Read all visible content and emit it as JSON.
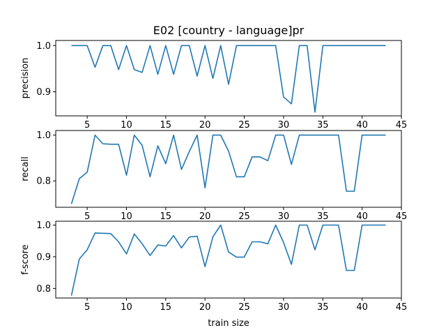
{
  "chart_data": {
    "type": "line",
    "title": "E02 [country - language]pr",
    "xlabel": "train size",
    "line_color": "#1f77b4",
    "grid": false,
    "x": [
      3,
      4,
      5,
      6,
      7,
      8,
      9,
      10,
      11,
      12,
      13,
      14,
      15,
      16,
      17,
      18,
      19,
      20,
      21,
      22,
      23,
      24,
      25,
      26,
      27,
      28,
      29,
      30,
      31,
      32,
      33,
      34,
      35,
      36,
      37,
      38,
      39,
      40,
      41,
      42,
      43
    ],
    "xlim": [
      1,
      45
    ],
    "xticks": [
      5,
      10,
      15,
      20,
      25,
      30,
      35,
      40,
      45
    ],
    "panels": [
      {
        "ylabel": "precision",
        "ylim": [
          0.848,
          1.011
        ],
        "yticks": [
          0.9,
          1.0
        ],
        "ytick_labels": [
          "0.9",
          "1.0"
        ],
        "values": [
          1.0,
          1.0,
          1.0,
          0.953,
          1.0,
          1.0,
          0.948,
          1.0,
          0.948,
          0.942,
          1.0,
          0.938,
          1.0,
          0.938,
          1.0,
          1.0,
          0.934,
          1.0,
          0.929,
          1.0,
          0.916,
          1.0,
          1.0,
          1.0,
          1.0,
          1.0,
          1.0,
          0.889,
          0.874,
          1.0,
          1.0,
          0.856,
          1.0,
          1.0,
          1.0,
          1.0,
          1.0,
          1.0,
          1.0,
          1.0,
          1.0
        ]
      },
      {
        "ylabel": "recall",
        "ylim": [
          0.685,
          1.02
        ],
        "yticks": [
          0.8,
          1.0
        ],
        "ytick_labels": [
          "0.8",
          "1.0"
        ],
        "values": [
          0.7,
          0.81,
          0.838,
          1.0,
          0.962,
          0.96,
          0.96,
          0.825,
          1.0,
          0.955,
          0.818,
          0.953,
          0.875,
          1.0,
          0.85,
          0.928,
          1.0,
          0.77,
          1.0,
          1.0,
          0.93,
          0.818,
          0.818,
          0.905,
          0.905,
          0.888,
          1.0,
          1.0,
          0.872,
          1.0,
          1.0,
          1.0,
          1.0,
          1.0,
          1.0,
          0.755,
          0.755,
          1.0,
          1.0,
          1.0,
          1.0
        ]
      },
      {
        "ylabel": "f-score",
        "ylim": [
          0.77,
          1.012
        ],
        "yticks": [
          0.8,
          0.9,
          1.0
        ],
        "ytick_labels": [
          "0.8",
          "0.9",
          "1.0"
        ],
        "values": [
          0.778,
          0.893,
          0.922,
          0.975,
          0.974,
          0.973,
          0.947,
          0.909,
          0.972,
          0.941,
          0.904,
          0.937,
          0.934,
          0.967,
          0.928,
          0.962,
          0.965,
          0.869,
          0.963,
          1.0,
          0.915,
          0.899,
          0.899,
          0.947,
          0.947,
          0.941,
          1.0,
          0.945,
          0.876,
          1.0,
          1.0,
          0.922,
          1.0,
          1.0,
          1.0,
          0.857,
          0.857,
          1.0,
          1.0,
          1.0,
          1.0
        ]
      }
    ]
  }
}
